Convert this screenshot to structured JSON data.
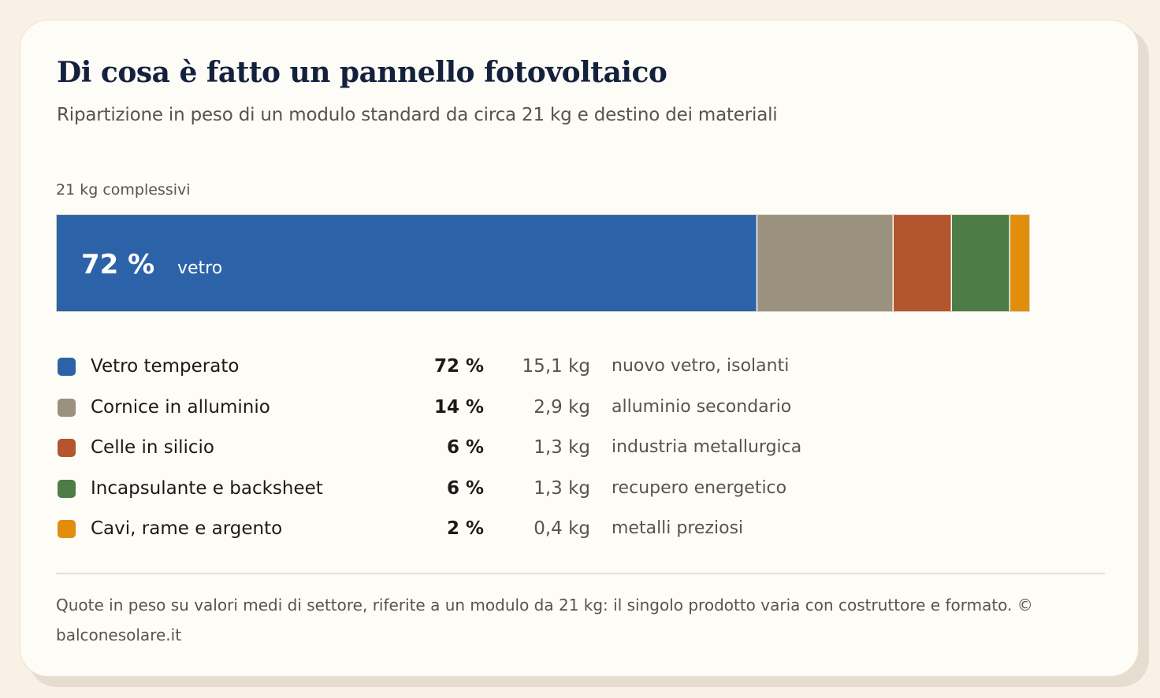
{
  "title": "Di cosa è fatto un pannello fotovoltaico",
  "subtitle": "Ripartizione in peso di un modulo standard da circa 21 kg e destino dei materiali",
  "total_label": "21 kg complessivi",
  "chart_data": {
    "type": "bar",
    "orientation": "horizontal-stacked",
    "title": "Di cosa è fatto un pannello fotovoltaico",
    "subtitle": "Ripartizione in peso di un modulo standard da circa 21 kg e destino dei materiali",
    "total_kg": 21,
    "bar_label": {
      "value": "72 %",
      "text": "vetro"
    },
    "series": [
      {
        "name": "Vetro temperato",
        "percent": 72,
        "percent_label": "72 %",
        "weight_label": "15,1 kg",
        "destination": "nuovo vetro, isolanti",
        "color": "#2c63a8"
      },
      {
        "name": "Cornice in alluminio",
        "percent": 14,
        "percent_label": "14 %",
        "weight_label": "2,9 kg",
        "destination": "alluminio secondario",
        "color": "#9a927e"
      },
      {
        "name": "Celle in silicio",
        "percent": 6,
        "percent_label": "6 %",
        "weight_label": "1,3 kg",
        "destination": "industria metallurgica",
        "color": "#b3552d"
      },
      {
        "name": "Incapsulante e backsheet",
        "percent": 6,
        "percent_label": "6 %",
        "weight_label": "1,3 kg",
        "destination": "recupero energetico",
        "color": "#4e7c46"
      },
      {
        "name": "Cavi, rame e argento",
        "percent": 2,
        "percent_label": "2 %",
        "weight_label": "0,4 kg",
        "destination": "metalli preziosi",
        "color": "#e08e0b"
      }
    ]
  },
  "footnote": "Quote in peso su valori medi di settore, riferite a un modulo da 21 kg: il singolo prodotto varia con costruttore e formato. © balconesolare.it"
}
